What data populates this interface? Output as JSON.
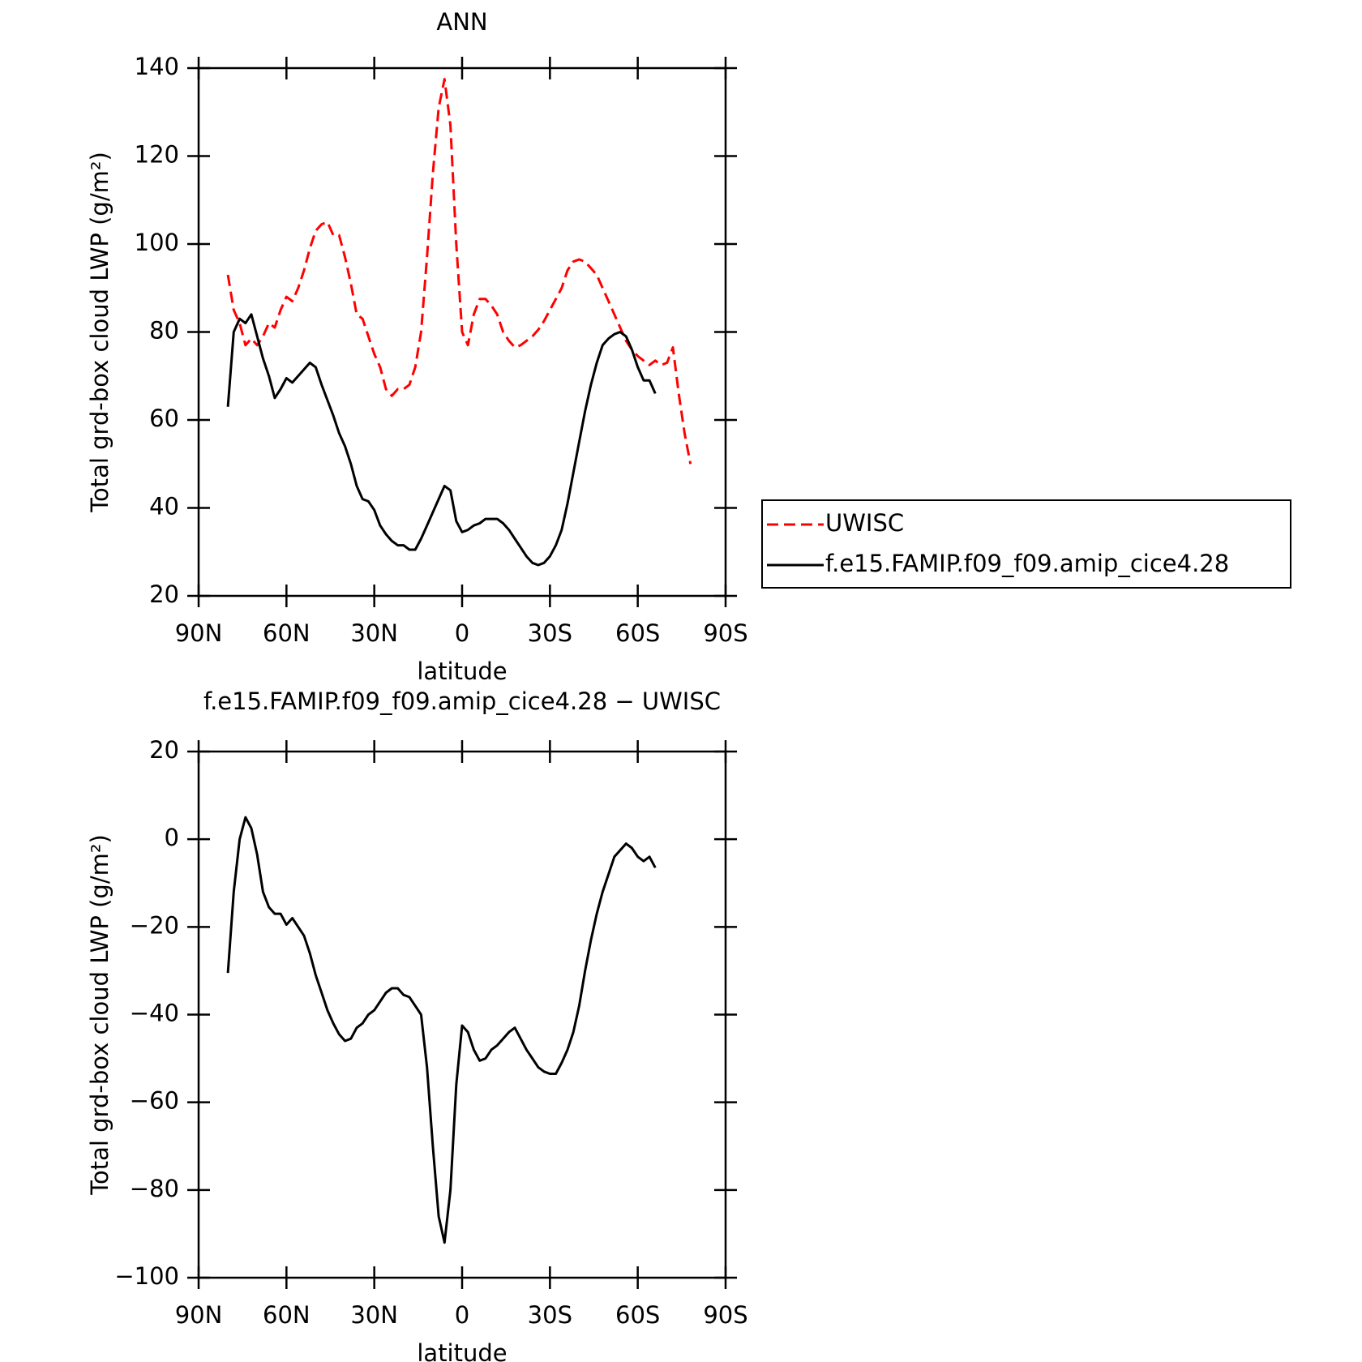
{
  "chart_data": [
    {
      "type": "line",
      "title": "ANN",
      "x_label": "latitude",
      "y_label": "Total grd-box cloud LWP (g/m²)",
      "x": [
        80,
        78,
        76,
        74,
        72,
        70,
        68,
        66,
        64,
        62,
        60,
        58,
        56,
        54,
        52,
        50,
        48,
        46,
        44,
        42,
        40,
        38,
        36,
        34,
        32,
        30,
        28,
        26,
        24,
        22,
        20,
        18,
        16,
        14,
        12,
        10,
        8,
        6,
        4,
        2,
        0,
        -2,
        -4,
        -6,
        -8,
        -10,
        -12,
        -14,
        -16,
        -18,
        -20,
        -22,
        -24,
        -26,
        -28,
        -30,
        -32,
        -34,
        -36,
        -38,
        -40,
        -42,
        -44,
        -46,
        -48,
        -50,
        -52,
        -54,
        -56,
        -58,
        -60,
        -62,
        -64,
        -66,
        -68,
        -70,
        -72,
        -74,
        -76,
        -78
      ],
      "series": [
        {
          "name": "UWISC",
          "color": "#ff0000",
          "dash": "dashed",
          "values": [
            93,
            85,
            82,
            77,
            78.5,
            77,
            79,
            82,
            81,
            85,
            88,
            87,
            90,
            94,
            99,
            103,
            104.5,
            105,
            102,
            102,
            97,
            91,
            84,
            83,
            79,
            75,
            72,
            67,
            65.5,
            67,
            67,
            68,
            72,
            80,
            97,
            116,
            131,
            137.5,
            127,
            100,
            80,
            77,
            84,
            87.5,
            87.5,
            86,
            84,
            80,
            78,
            76.5,
            77,
            78,
            79,
            80.5,
            82.5,
            85,
            87.5,
            90,
            94,
            96,
            96.5,
            96,
            94.5,
            93,
            90,
            87,
            84,
            81,
            78,
            76,
            74.5,
            73.5,
            72.5,
            73.5,
            72.5,
            73,
            76.5,
            66,
            57,
            50
          ]
        },
        {
          "name": "f.e15.FAMIP.f09_f09.amip_cice4.28",
          "color": "#000000",
          "dash": "solid",
          "values": [
            63,
            80,
            83,
            82,
            84,
            79,
            74,
            70,
            65,
            67,
            69.5,
            68.5,
            70,
            71.5,
            73,
            72,
            68,
            64.5,
            61,
            57,
            54,
            50,
            45,
            42,
            41.5,
            39.5,
            36,
            34,
            32.5,
            31.5,
            31.5,
            30.5,
            30.5,
            33,
            36,
            39,
            42,
            45,
            44,
            37,
            34.5,
            35,
            36,
            36.5,
            37.5,
            37.5,
            37.5,
            36.5,
            35,
            33,
            31,
            29,
            27.5,
            27,
            27.5,
            29,
            31.5,
            35,
            41,
            48,
            55,
            62,
            68,
            73,
            77,
            78.5,
            79.5,
            80,
            79,
            76,
            72,
            69,
            69,
            66,
            null,
            null,
            null,
            null,
            null,
            null
          ]
        }
      ],
      "xlim": [
        90,
        -90
      ],
      "xticks": [
        {
          "value": 90,
          "label": "90N"
        },
        {
          "value": 60,
          "label": "60N"
        },
        {
          "value": 30,
          "label": "30N"
        },
        0,
        {
          "value": -30,
          "label": "30S"
        },
        {
          "value": -60,
          "label": "60S"
        },
        {
          "value": -90,
          "label": "90S"
        }
      ],
      "ylim": [
        20,
        140
      ],
      "yticks": [
        20,
        40,
        60,
        80,
        100,
        120,
        140
      ],
      "legend": "right"
    },
    {
      "type": "line",
      "title": "f.e15.FAMIP.f09_f09.amip_cice4.28 − UWISC",
      "x_label": "latitude",
      "y_label": "Total grd-box cloud LWP (g/m²)",
      "x": [
        80,
        78,
        76,
        74,
        72,
        70,
        68,
        66,
        64,
        62,
        60,
        58,
        56,
        54,
        52,
        50,
        48,
        46,
        44,
        42,
        40,
        38,
        36,
        34,
        32,
        30,
        28,
        26,
        24,
        22,
        20,
        18,
        16,
        14,
        12,
        10,
        8,
        6,
        4,
        2,
        0,
        -2,
        -4,
        -6,
        -8,
        -10,
        -12,
        -14,
        -16,
        -18,
        -20,
        -22,
        -24,
        -26,
        -28,
        -30,
        -32,
        -34,
        -36,
        -38,
        -40,
        -42,
        -44,
        -46,
        -48,
        -50,
        -52,
        -54,
        -56,
        -58,
        -60,
        -62,
        -64,
        -66
      ],
      "series": [
        {
          "color": "#000000",
          "dash": "solid",
          "values": [
            -30.5,
            -12,
            0,
            5,
            2.5,
            -3.5,
            -12,
            -15.5,
            -17,
            -17,
            -19.5,
            -18,
            -20,
            -22,
            -26,
            -31,
            -35,
            -39,
            -42,
            -44.5,
            -46,
            -45.5,
            -43,
            -42,
            -40,
            -39,
            -37,
            -35,
            -34,
            -34,
            -35.5,
            -36,
            -38,
            -40,
            -52,
            -70,
            -86,
            -92,
            -80,
            -56,
            -42.5,
            -44,
            -48,
            -50.5,
            -50,
            -48,
            -47,
            -45.5,
            -44,
            -43,
            -45.5,
            -48,
            -50,
            -52,
            -53,
            -53.5,
            -53.5,
            -51,
            -48,
            -44,
            -38,
            -30,
            -23,
            -17,
            -12,
            -8,
            -4,
            -2.5,
            -1,
            -2,
            -4,
            -5,
            -4,
            -6.5
          ]
        }
      ],
      "xlim": [
        90,
        -90
      ],
      "xticks": [
        {
          "value": 90,
          "label": "90N"
        },
        {
          "value": 60,
          "label": "60N"
        },
        {
          "value": 30,
          "label": "30N"
        },
        0,
        {
          "value": -30,
          "label": "30S"
        },
        {
          "value": -60,
          "label": "60S"
        },
        {
          "value": -90,
          "label": "90S"
        }
      ],
      "ylim": [
        -100,
        20
      ],
      "yticks": [
        {
          "value": -100,
          "label": "−100"
        },
        {
          "value": -80,
          "label": "−80"
        },
        {
          "value": -60,
          "label": "−60"
        },
        {
          "value": -40,
          "label": "−40"
        },
        {
          "value": -20,
          "label": "−20"
        },
        0,
        20
      ]
    }
  ]
}
